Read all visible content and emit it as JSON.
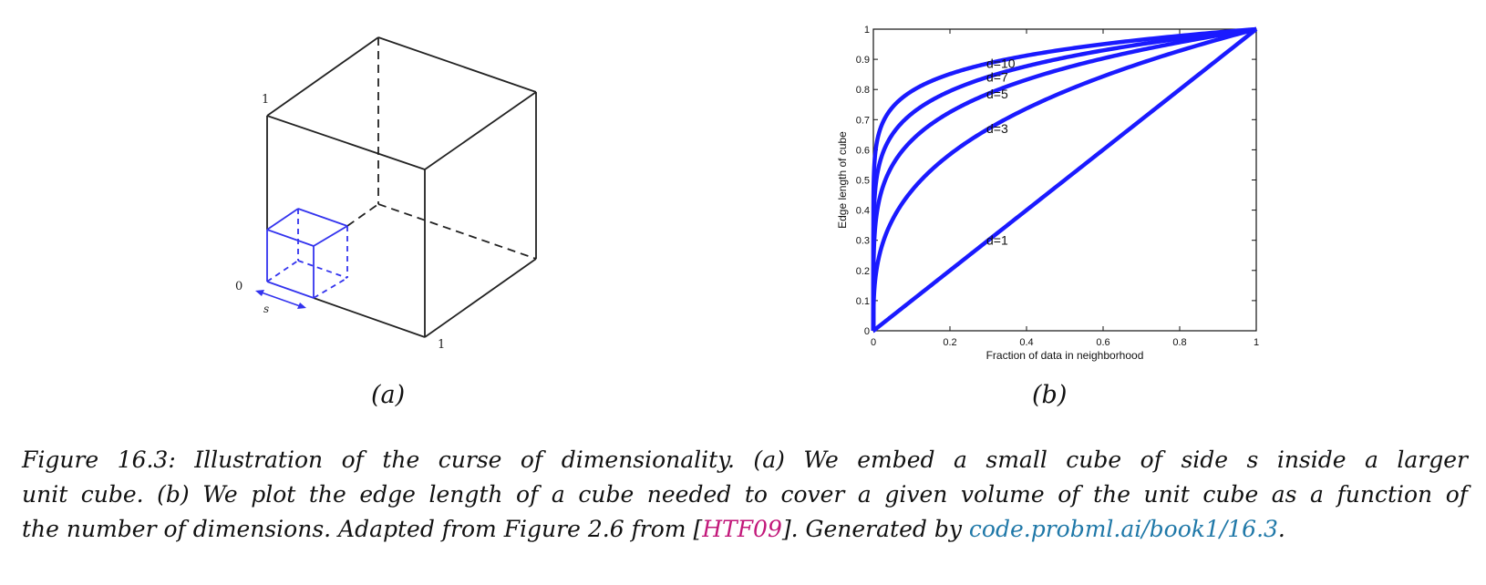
{
  "panel_a": {
    "labels": {
      "top": "1",
      "origin": "0",
      "right": "1",
      "side": "s"
    },
    "sublabel": "(a)"
  },
  "panel_b": {
    "sublabel": "(b)"
  },
  "caption": {
    "line1": "Figure 16.3: Illustration of the curse of dimensionality. (a) We embed a small cube of side s inside a larger",
    "line2": "unit cube. (b) We plot the edge length of a cube needed to cover a given volume of the unit cube as a function of",
    "line3_pre": "the number of dimensions. Adapted from Figure 2.6 from [",
    "citation": "HTF09",
    "line3_mid": "]. Generated by ",
    "link": "code.probml.ai/book1/16.3",
    "line3_post": "."
  },
  "colors": {
    "curve": "#1a1aff",
    "cube_small": "#3333ee",
    "cube_large": "#222222"
  },
  "chart_data": {
    "type": "line",
    "xlabel": "Fraction of data in neighborhood",
    "ylabel": "Edge length of cube",
    "xlim": [
      0,
      1
    ],
    "ylim": [
      0,
      1
    ],
    "xticks": [
      "0",
      "0.2",
      "0.4",
      "0.6",
      "0.8",
      "1"
    ],
    "yticks": [
      "0",
      "0.1",
      "0.2",
      "0.3",
      "0.4",
      "0.5",
      "0.6",
      "0.7",
      "0.8",
      "0.9",
      "1"
    ],
    "grid": false,
    "series": [
      {
        "name": "d=10",
        "d": 10
      },
      {
        "name": "d=7",
        "d": 7
      },
      {
        "name": "d=5",
        "d": 5
      },
      {
        "name": "d=3",
        "d": 3
      },
      {
        "name": "d=1",
        "d": 1
      }
    ],
    "x": [
      0,
      0.001,
      0.005,
      0.01,
      0.02,
      0.04,
      0.06,
      0.1,
      0.15,
      0.2,
      0.3,
      0.4,
      0.5,
      0.6,
      0.7,
      0.8,
      0.9,
      1.0
    ],
    "annotations": [
      {
        "text": "d=10",
        "x": 0.3,
        "y": 0.886
      },
      {
        "text": "d=7",
        "x": 0.3,
        "y": 0.842
      },
      {
        "text": "d=5",
        "x": 0.3,
        "y": 0.786
      },
      {
        "text": "d=3",
        "x": 0.3,
        "y": 0.67
      },
      {
        "text": "d=1",
        "x": 0.3,
        "y": 0.3
      }
    ]
  }
}
